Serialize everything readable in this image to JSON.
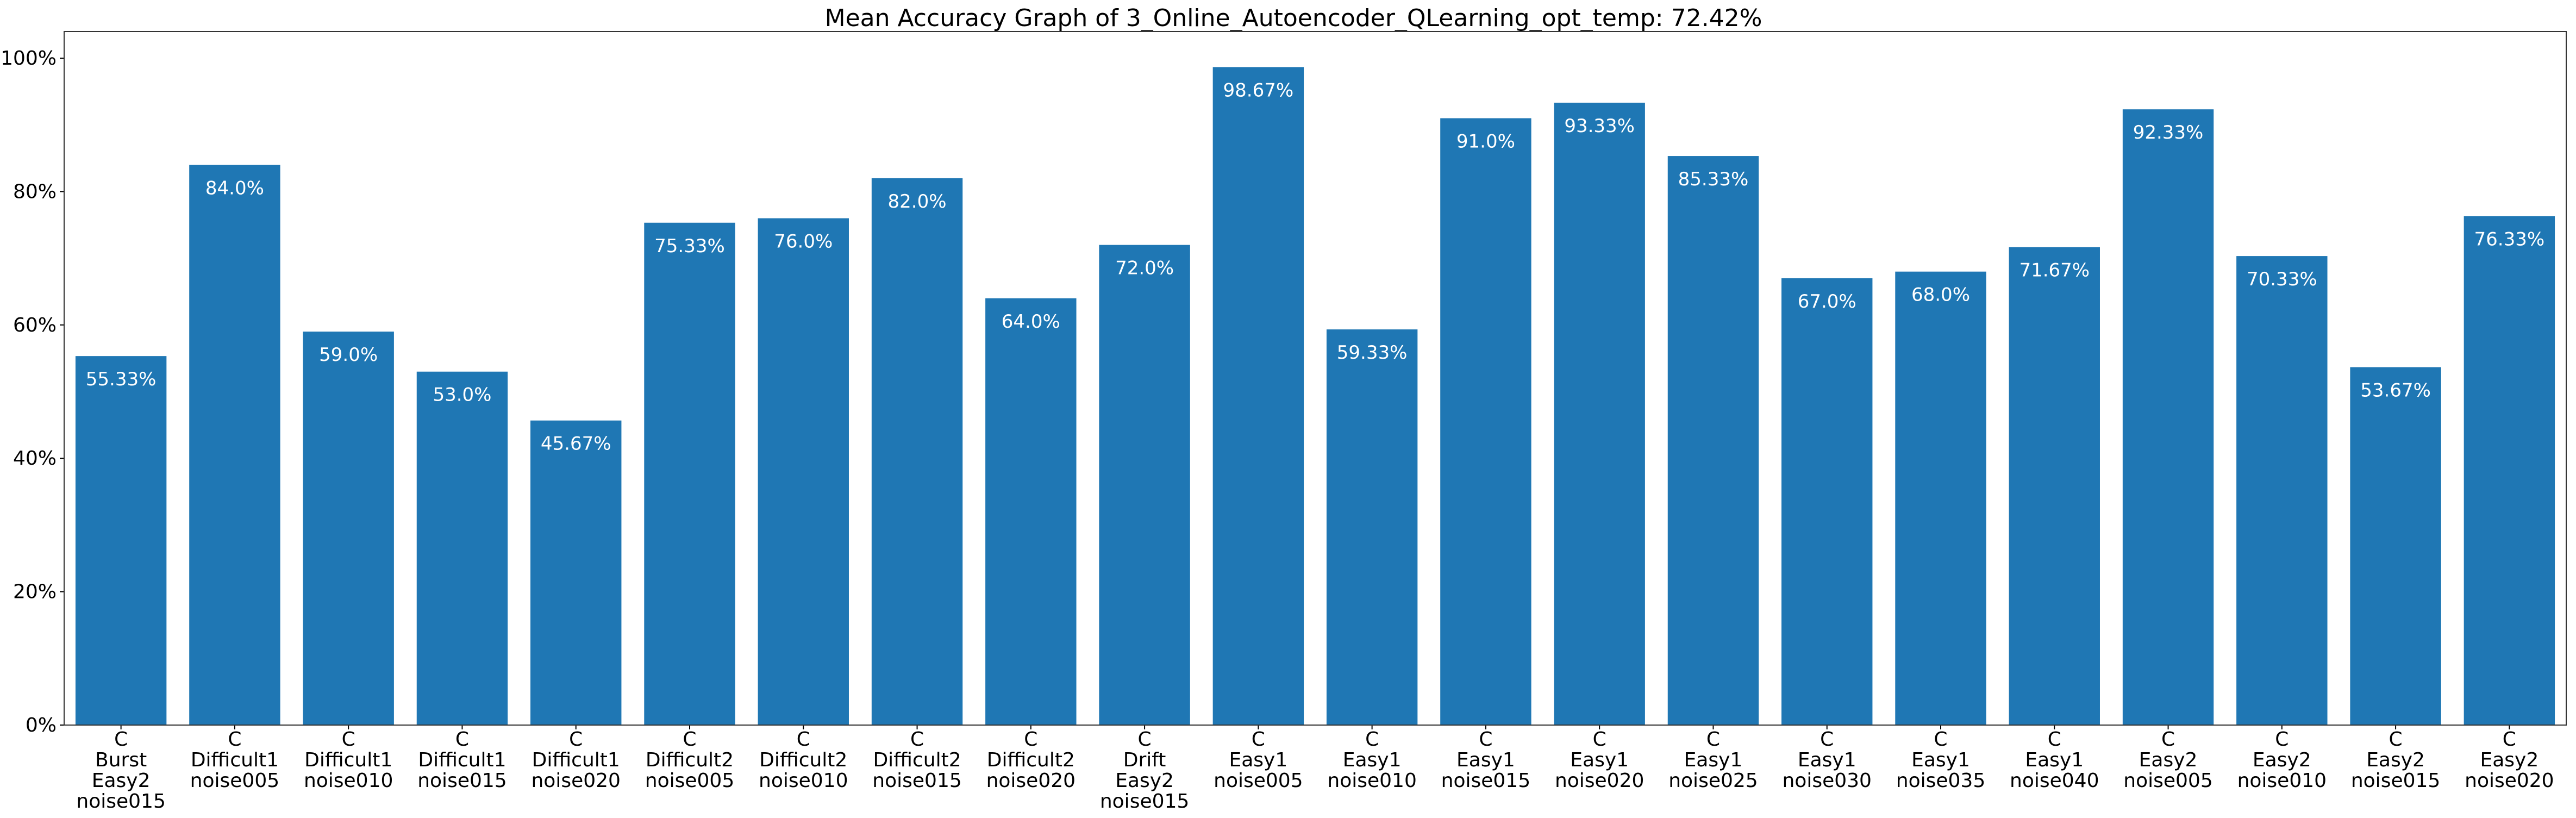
{
  "chart_data": {
    "type": "bar",
    "title": "Mean Accuracy Graph of 3_Online_Autoencoder_QLearning_opt_temp: 72.42%",
    "xlabel": "",
    "ylabel": "",
    "ylim": [
      0,
      104
    ],
    "y_ticks": [
      {
        "value": 0,
        "label": "0%"
      },
      {
        "value": 20,
        "label": "20%"
      },
      {
        "value": 40,
        "label": "40%"
      },
      {
        "value": 60,
        "label": "60%"
      },
      {
        "value": 80,
        "label": "80%"
      },
      {
        "value": 100,
        "label": "100%"
      }
    ],
    "grid": false,
    "color": "#1f77b4",
    "categories": [
      [
        "C",
        "Burst",
        "Easy2",
        "noise015"
      ],
      [
        "C",
        "Difficult1",
        "noise005"
      ],
      [
        "C",
        "Difficult1",
        "noise010"
      ],
      [
        "C",
        "Difficult1",
        "noise015"
      ],
      [
        "C",
        "Difficult1",
        "noise020"
      ],
      [
        "C",
        "Difficult2",
        "noise005"
      ],
      [
        "C",
        "Difficult2",
        "noise010"
      ],
      [
        "C",
        "Difficult2",
        "noise015"
      ],
      [
        "C",
        "Difficult2",
        "noise020"
      ],
      [
        "C",
        "Drift",
        "Easy2",
        "noise015"
      ],
      [
        "C",
        "Easy1",
        "noise005"
      ],
      [
        "C",
        "Easy1",
        "noise010"
      ],
      [
        "C",
        "Easy1",
        "noise015"
      ],
      [
        "C",
        "Easy1",
        "noise020"
      ],
      [
        "C",
        "Easy1",
        "noise025"
      ],
      [
        "C",
        "Easy1",
        "noise030"
      ],
      [
        "C",
        "Easy1",
        "noise035"
      ],
      [
        "C",
        "Easy1",
        "noise040"
      ],
      [
        "C",
        "Easy2",
        "noise005"
      ],
      [
        "C",
        "Easy2",
        "noise010"
      ],
      [
        "C",
        "Easy2",
        "noise015"
      ],
      [
        "C",
        "Easy2",
        "noise020"
      ]
    ],
    "values": [
      55.33,
      84.0,
      59.0,
      53.0,
      45.67,
      75.33,
      76.0,
      82.0,
      64.0,
      72.0,
      98.67,
      59.33,
      91.0,
      93.33,
      85.33,
      67.0,
      68.0,
      71.67,
      92.33,
      70.33,
      53.67,
      76.33
    ],
    "data_labels": [
      "55.33%",
      "84.0%",
      "59.0%",
      "53.0%",
      "45.67%",
      "75.33%",
      "76.0%",
      "82.0%",
      "64.0%",
      "72.0%",
      "98.67%",
      "59.33%",
      "91.0%",
      "93.33%",
      "85.33%",
      "67.0%",
      "68.0%",
      "71.67%",
      "92.33%",
      "70.33%",
      "53.67%",
      "76.33%"
    ]
  }
}
